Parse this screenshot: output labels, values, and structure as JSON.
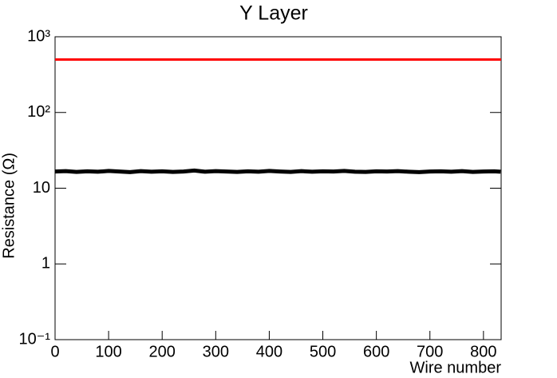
{
  "chart_data": {
    "type": "line",
    "title": "Y Layer",
    "x_label": "Wire number",
    "y_label": "Resistance (Ω)",
    "x": [
      0,
      20,
      40,
      60,
      80,
      100,
      120,
      140,
      160,
      180,
      200,
      220,
      240,
      260,
      280,
      300,
      320,
      340,
      360,
      380,
      400,
      420,
      440,
      460,
      480,
      500,
      520,
      540,
      560,
      580,
      600,
      620,
      640,
      660,
      680,
      700,
      720,
      740,
      760,
      780,
      800,
      820,
      832
    ],
    "series": [
      {
        "color": "#000000",
        "values": [
          16.6,
          16.8,
          16.4,
          16.7,
          16.5,
          16.9,
          16.6,
          16.3,
          16.8,
          16.5,
          16.7,
          16.4,
          16.6,
          17.1,
          16.5,
          16.8,
          16.6,
          16.4,
          16.7,
          16.5,
          16.9,
          16.6,
          16.4,
          16.8,
          16.5,
          16.7,
          16.6,
          16.9,
          16.5,
          16.4,
          16.7,
          16.6,
          16.8,
          16.5,
          16.3,
          16.6,
          16.7,
          16.5,
          16.8,
          16.4,
          16.6,
          16.7,
          16.5
        ]
      }
    ],
    "reference_line": {
      "value": 500,
      "color": "#ff0000"
    },
    "xlim": [
      0,
      833
    ],
    "xticks": [
      0,
      100,
      200,
      300,
      400,
      500,
      600,
      700,
      800
    ],
    "ylog": true,
    "ylim": [
      0.1,
      1000
    ],
    "yticks": [
      {
        "value": 0.1,
        "label": "10⁻¹"
      },
      1,
      10,
      {
        "value": 100,
        "label": "10²"
      },
      {
        "value": 1000,
        "label": "10³"
      }
    ]
  }
}
